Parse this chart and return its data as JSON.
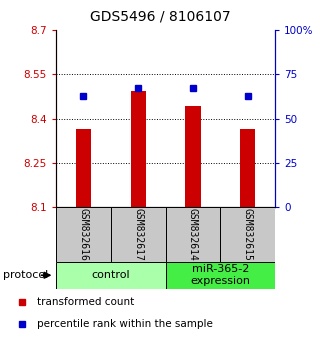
{
  "title": "GDS5496 / 8106107",
  "samples": [
    "GSM832616",
    "GSM832617",
    "GSM832614",
    "GSM832615"
  ],
  "bar_values": [
    8.365,
    8.492,
    8.442,
    8.365
  ],
  "percentile_values": [
    63,
    67,
    67,
    63
  ],
  "ymin": 8.1,
  "ymax": 8.7,
  "yticks_left": [
    8.1,
    8.25,
    8.4,
    8.55,
    8.7
  ],
  "yticks_right": [
    0,
    25,
    50,
    75,
    100
  ],
  "bar_color": "#cc0000",
  "dot_color": "#0000cc",
  "groups": [
    {
      "label": "control",
      "color": "#aaffaa"
    },
    {
      "label": "miR-365-2\nexpression",
      "color": "#44ee44"
    }
  ],
  "legend_bar_label": "transformed count",
  "legend_dot_label": "percentile rank within the sample",
  "protocol_label": "protocol",
  "sample_box_color": "#c8c8c8",
  "title_fontsize": 10,
  "tick_fontsize": 7.5,
  "sample_label_fontsize": 7,
  "group_label_fontsize": 8
}
